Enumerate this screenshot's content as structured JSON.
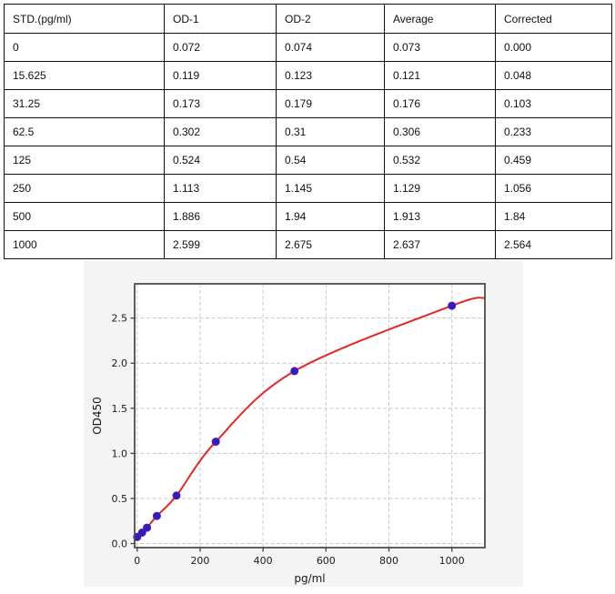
{
  "table": {
    "columns": [
      "STD.(pg/ml)",
      "OD-1",
      "OD-2",
      "Average",
      "Corrected"
    ],
    "rows": [
      [
        "0",
        "0.072",
        "0.074",
        "0.073",
        "0.000"
      ],
      [
        "15.625",
        "0.119",
        "0.123",
        "0.121",
        "0.048"
      ],
      [
        "31.25",
        "0.173",
        "0.179",
        "0.176",
        "0.103"
      ],
      [
        "62.5",
        "0.302",
        "0.31",
        "0.306",
        "0.233"
      ],
      [
        "125",
        "0.524",
        "0.54",
        "0.532",
        "0.459"
      ],
      [
        "250",
        "1.113",
        "1.145",
        "1.129",
        "1.056"
      ],
      [
        "500",
        "1.886",
        "1.94",
        "1.913",
        "1.84"
      ],
      [
        "1000",
        "2.599",
        "2.675",
        "2.637",
        "2.564"
      ]
    ]
  },
  "chart_data": {
    "type": "scatter",
    "title": "",
    "xlabel": "pg/ml",
    "ylabel": "OD450",
    "x": [
      0,
      15.625,
      31.25,
      62.5,
      125,
      250,
      500,
      1000
    ],
    "y": [
      0.073,
      0.121,
      0.176,
      0.306,
      0.532,
      1.129,
      1.913,
      2.637
    ],
    "fit_curve_points": [
      [
        -8,
        0.05
      ],
      [
        0,
        0.073
      ],
      [
        15.625,
        0.121
      ],
      [
        31.25,
        0.176
      ],
      [
        62.5,
        0.306
      ],
      [
        125,
        0.532
      ],
      [
        250,
        1.129
      ],
      [
        500,
        1.913
      ],
      [
        1000,
        2.637
      ],
      [
        1105,
        2.725
      ]
    ],
    "xlim": [
      -8,
      1105
    ],
    "ylim": [
      -0.045,
      2.88
    ],
    "xticks": [
      0,
      200,
      400,
      600,
      800,
      1000
    ],
    "xtick_labels": [
      "0",
      "200",
      "400",
      "600",
      "800",
      "1000"
    ],
    "yticks": [
      0,
      0.5,
      1,
      1.5,
      2,
      2.5
    ],
    "ytick_labels": [
      "0.0",
      "0.5",
      "1.0",
      "1.5",
      "2.0",
      "2.5"
    ],
    "grid": true,
    "grid_style": "dashed",
    "legend": "none",
    "colors": {
      "line": "#e32726",
      "marker_fill": "#2b20c4",
      "marker_edge": "#5c15a8",
      "panel_background": "#f4f4f4",
      "plot_background": "#ffffff",
      "grid": "#c9c9c9",
      "frame": "#4d4d4d",
      "tick_text": "#1a1a1a"
    }
  }
}
